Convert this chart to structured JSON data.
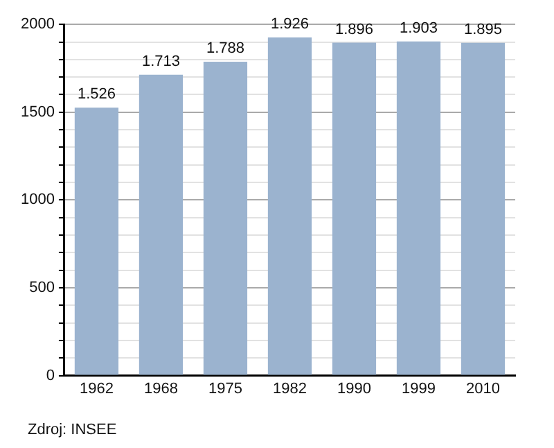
{
  "chart_data": {
    "type": "bar",
    "categories": [
      "1962",
      "1968",
      "1975",
      "1982",
      "1990",
      "1999",
      "2010"
    ],
    "values": [
      1526,
      1713,
      1788,
      1926,
      1896,
      1903,
      1895
    ],
    "value_labels": [
      "1.526",
      "1.713",
      "1.788",
      "1.926",
      "1.896",
      "1.903",
      "1.895"
    ],
    "color": "#9bb3cf",
    "ylim": [
      0,
      2000
    ],
    "yticks": [
      0,
      {
        "value": 100,
        "label": null
      },
      {
        "value": 200,
        "label": null
      },
      {
        "value": 300,
        "label": null
      },
      {
        "value": 400,
        "label": null
      },
      500,
      {
        "value": 600,
        "label": null
      },
      {
        "value": 700,
        "label": null
      },
      {
        "value": 800,
        "label": null
      },
      {
        "value": 900,
        "label": null
      },
      1000,
      {
        "value": 1100,
        "label": null
      },
      {
        "value": 1200,
        "label": null
      },
      {
        "value": 1300,
        "label": null
      },
      {
        "value": 1400,
        "label": null
      },
      1500,
      {
        "value": 1600,
        "label": null
      },
      {
        "value": 1700,
        "label": null
      },
      {
        "value": 1800,
        "label": null
      },
      {
        "value": 1900,
        "label": null
      },
      2000
    ],
    "grid": "y",
    "annotations": [
      "Zdroj: INSEE"
    ]
  }
}
